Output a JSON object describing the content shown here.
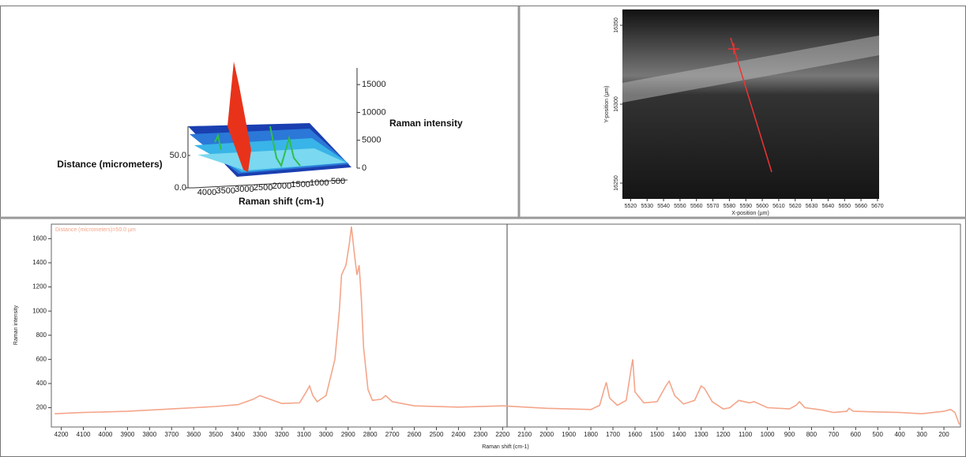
{
  "chart_data": [
    {
      "type": "waterfall3d",
      "x_label": "Raman shift (cm-1)",
      "y_label": "Distance (micrometers)",
      "z_label": "Raman intensity",
      "xlim": [
        4000,
        500
      ],
      "xticks": [
        4000,
        3500,
        3000,
        2500,
        2000,
        1500,
        1000,
        500
      ],
      "ylim": [
        0,
        50
      ],
      "yticks": [
        {
          "value": 0,
          "label": "0.0"
        },
        {
          "value": 50,
          "label": "50.0"
        }
      ],
      "zlim": [
        0,
        18000
      ],
      "zticks": [
        0,
        5000,
        10000,
        15000
      ]
    },
    {
      "type": "image",
      "x_label": "X-position (µm)",
      "y_label": "Y-position (µm)",
      "xlim": [
        5515,
        5671
      ],
      "xticks": [
        5520,
        5530,
        5540,
        5550,
        5560,
        5570,
        5580,
        5590,
        5600,
        5610,
        5620,
        5630,
        5640,
        5650,
        5660,
        5670
      ],
      "ylim": [
        16240,
        16360
      ],
      "yticks": [
        16250,
        16300,
        16350
      ]
    },
    {
      "type": "line",
      "x_label": "Raman shift (cm-1)",
      "y_label": "Raman intensity",
      "xlim": [
        4245,
        125
      ],
      "xticks": [
        4200,
        4100,
        4000,
        3900,
        3800,
        3700,
        3600,
        3500,
        3400,
        3300,
        3200,
        3100,
        3000,
        2900,
        2800,
        2700,
        2600,
        2500,
        2400,
        2300,
        2200,
        2100,
        2000,
        1900,
        1800,
        1700,
        1600,
        1500,
        1400,
        1300,
        1200,
        1100,
        1000,
        900,
        800,
        700,
        600,
        500,
        400,
        300,
        200
      ],
      "ylim": [
        40,
        1720
      ],
      "yticks": [
        200,
        400,
        600,
        800,
        1000,
        1200,
        1400,
        1600
      ],
      "x": [
        4230,
        4100,
        3900,
        3700,
        3500,
        3400,
        3330,
        3300,
        3270,
        3200,
        3120,
        3090,
        3075,
        3060,
        3040,
        3000,
        2960,
        2940,
        2930,
        2910,
        2895,
        2885,
        2870,
        2860,
        2850,
        2840,
        2830,
        2810,
        2790,
        2750,
        2730,
        2700,
        2600,
        2400,
        2200,
        2000,
        1800,
        1760,
        1740,
        1730,
        1715,
        1680,
        1640,
        1615,
        1610,
        1600,
        1560,
        1500,
        1460,
        1445,
        1420,
        1380,
        1330,
        1300,
        1285,
        1250,
        1200,
        1170,
        1130,
        1080,
        1060,
        1000,
        900,
        870,
        855,
        830,
        750,
        700,
        640,
        630,
        610,
        500,
        400,
        300,
        200,
        170,
        150,
        130
      ],
      "series": [
        {
          "name": "Distance (micrometers)=50.0 µm",
          "color": "#f4a58a",
          "values": [
            150,
            160,
            170,
            190,
            210,
            225,
            270,
            300,
            280,
            235,
            240,
            330,
            380,
            300,
            250,
            300,
            600,
            1000,
            1300,
            1380,
            1550,
            1700,
            1450,
            1300,
            1380,
            1100,
            700,
            350,
            260,
            270,
            300,
            250,
            215,
            205,
            215,
            195,
            185,
            220,
            350,
            410,
            280,
            220,
            260,
            550,
            600,
            330,
            240,
            250,
            380,
            420,
            300,
            230,
            260,
            380,
            360,
            250,
            190,
            200,
            260,
            240,
            250,
            200,
            190,
            220,
            250,
            200,
            180,
            160,
            170,
            195,
            170,
            165,
            160,
            150,
            170,
            185,
            160,
            60
          ]
        }
      ]
    }
  ]
}
